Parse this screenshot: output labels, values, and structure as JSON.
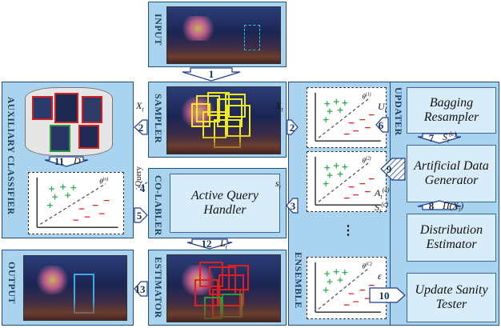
{
  "panels": {
    "input": "INPUT",
    "sampler": "SAMPLER",
    "colabler": "CO-LABLER",
    "estimator": "ESTIMATOR",
    "auxiliary": "AUXILIARY CLASSIFIER",
    "output": "OUTPUT",
    "ensemble": "ENSEMBLE",
    "updater": "UPDATER"
  },
  "modules": {
    "bagging": "Bagging Resampler",
    "artificial": "Artificial Data Generator",
    "distribution": "Distribution Estimator",
    "sanity": "Update Sanity Tester",
    "active_query": "Active Query Handler"
  },
  "steps": [
    "1",
    "2",
    "2",
    "3",
    "4",
    "5",
    "6",
    "7",
    "8",
    "9",
    "10",
    "11",
    "12",
    "13"
  ],
  "symbols": {
    "x_t": "X",
    "x_t_sub": "t",
    "u_t": "U",
    "s_t": "s",
    "query": "Query",
    "d": "D",
    "l_t": "L",
    "epsilon": "ε",
    "s_tc": "S",
    "a_tc": "A",
    "pi": "Π(X",
    "pi_close": ")",
    "theta1": "θ",
    "theta1_sup": "(1)",
    "theta2_sup": "(2)",
    "thetaC_sup": "(C)",
    "thetaO_sup": "(o)",
    "c_sup": "(c)",
    "dots": "⋮"
  },
  "colors": {
    "panel": "#a9d3ef",
    "module": "#d9ecf9",
    "arrow": "#1f3b8a",
    "plus": "#2bb24c",
    "minus": "#e0201b",
    "sampler_box": "#f2ea1a",
    "estimator_box": "#e02020",
    "estimator_best": "#2a9a3a",
    "output_box": "#3fa9e0"
  }
}
